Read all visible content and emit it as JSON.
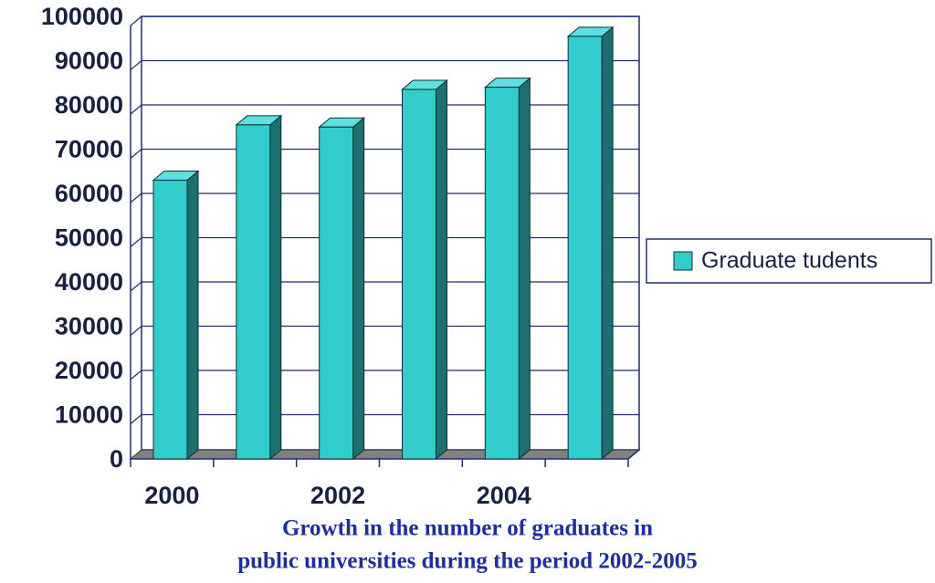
{
  "chart_data": {
    "type": "bar3d",
    "categories": [
      "2000",
      null,
      "2002",
      null,
      "2004",
      null
    ],
    "series": [
      {
        "name": "Graduate tudents",
        "color": "#33cccc",
        "values": [
          63000,
          75500,
          75000,
          83500,
          84000,
          95500
        ]
      }
    ],
    "ylim": [
      0,
      100000
    ],
    "yticks": [
      0,
      10000,
      20000,
      30000,
      40000,
      50000,
      60000,
      70000,
      80000,
      90000,
      100000
    ],
    "grid": true,
    "legend": "right",
    "caption": [
      "Growth in the number of graduates in",
      "public universities during the period 2002-2005"
    ]
  }
}
